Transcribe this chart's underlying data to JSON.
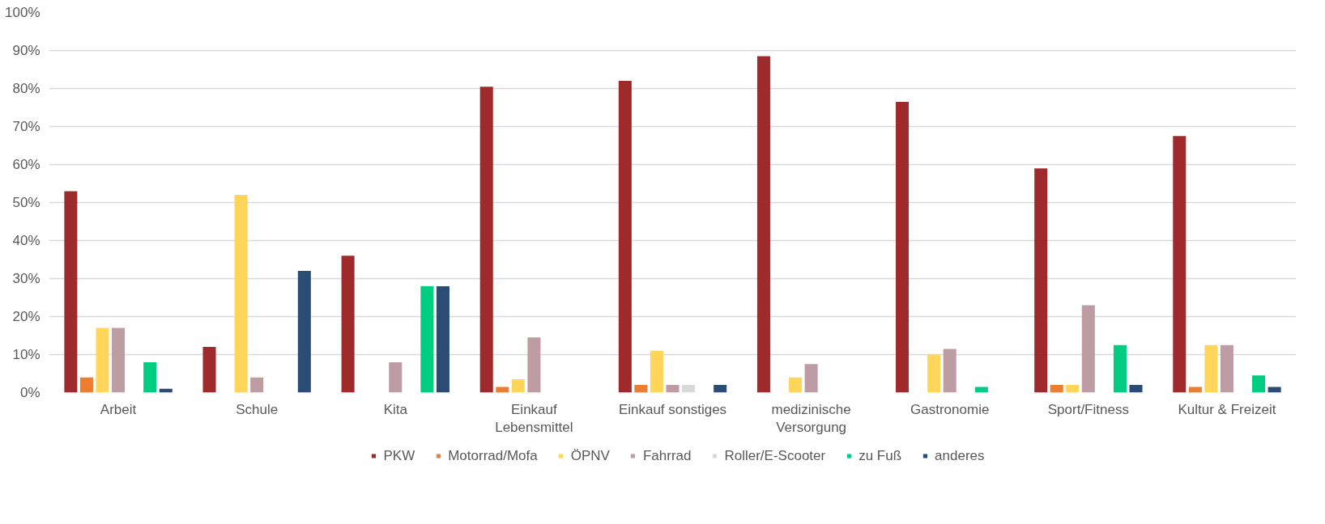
{
  "chart_data": {
    "type": "bar",
    "categories": [
      "Arbeit",
      "Schule",
      "Kita",
      "Einkauf\nLebensmittel",
      "Einkauf sonstiges",
      "medizinische\nVersorgung",
      "Gastronomie",
      "Sport/Fitness",
      "Kultur & Freizeit"
    ],
    "series": [
      {
        "name": "PKW",
        "color": "#9e2a2b",
        "values": [
          53,
          12,
          36,
          80.5,
          82,
          88.5,
          76.5,
          59,
          67.5
        ]
      },
      {
        "name": "Motorrad/Mofa",
        "color": "#ed7d31",
        "values": [
          4,
          0,
          0,
          1.5,
          2,
          0,
          0,
          2,
          1.5
        ]
      },
      {
        "name": "ÖPNV",
        "color": "#ffd55a",
        "values": [
          17,
          52,
          0,
          3.5,
          11,
          4,
          10,
          2,
          12.5
        ]
      },
      {
        "name": "Fahrrad",
        "color": "#bd9ca4",
        "values": [
          17,
          4,
          8,
          14.5,
          2,
          7.5,
          11.5,
          23,
          12.5
        ]
      },
      {
        "name": "Roller/E-Scooter",
        "color": "#d9d9d9",
        "values": [
          0,
          0,
          0,
          0,
          2,
          0,
          0,
          0,
          0
        ]
      },
      {
        "name": "zu Fuß",
        "color": "#00cc82",
        "values": [
          8,
          0,
          28,
          0,
          0,
          0,
          1.5,
          12.5,
          4.5
        ]
      },
      {
        "name": "anderes",
        "color": "#2b4c74",
        "values": [
          1,
          32,
          28,
          0,
          2,
          0,
          0,
          2,
          1.5
        ]
      }
    ],
    "ylim": [
      0,
      100
    ],
    "yticks": [
      {
        "value": 0,
        "label": "0%"
      },
      {
        "value": 10,
        "label": "10%"
      },
      {
        "value": 20,
        "label": "20%"
      },
      {
        "value": 30,
        "label": "30%"
      },
      {
        "value": 40,
        "label": "40%"
      },
      {
        "value": 50,
        "label": "50%"
      },
      {
        "value": 60,
        "label": "60%"
      },
      {
        "value": 70,
        "label": "70%"
      },
      {
        "value": 80,
        "label": "80%"
      },
      {
        "value": 90,
        "label": "90%"
      },
      {
        "value": 100,
        "label": "100%"
      }
    ],
    "grid": "y",
    "legend": "bottom"
  }
}
